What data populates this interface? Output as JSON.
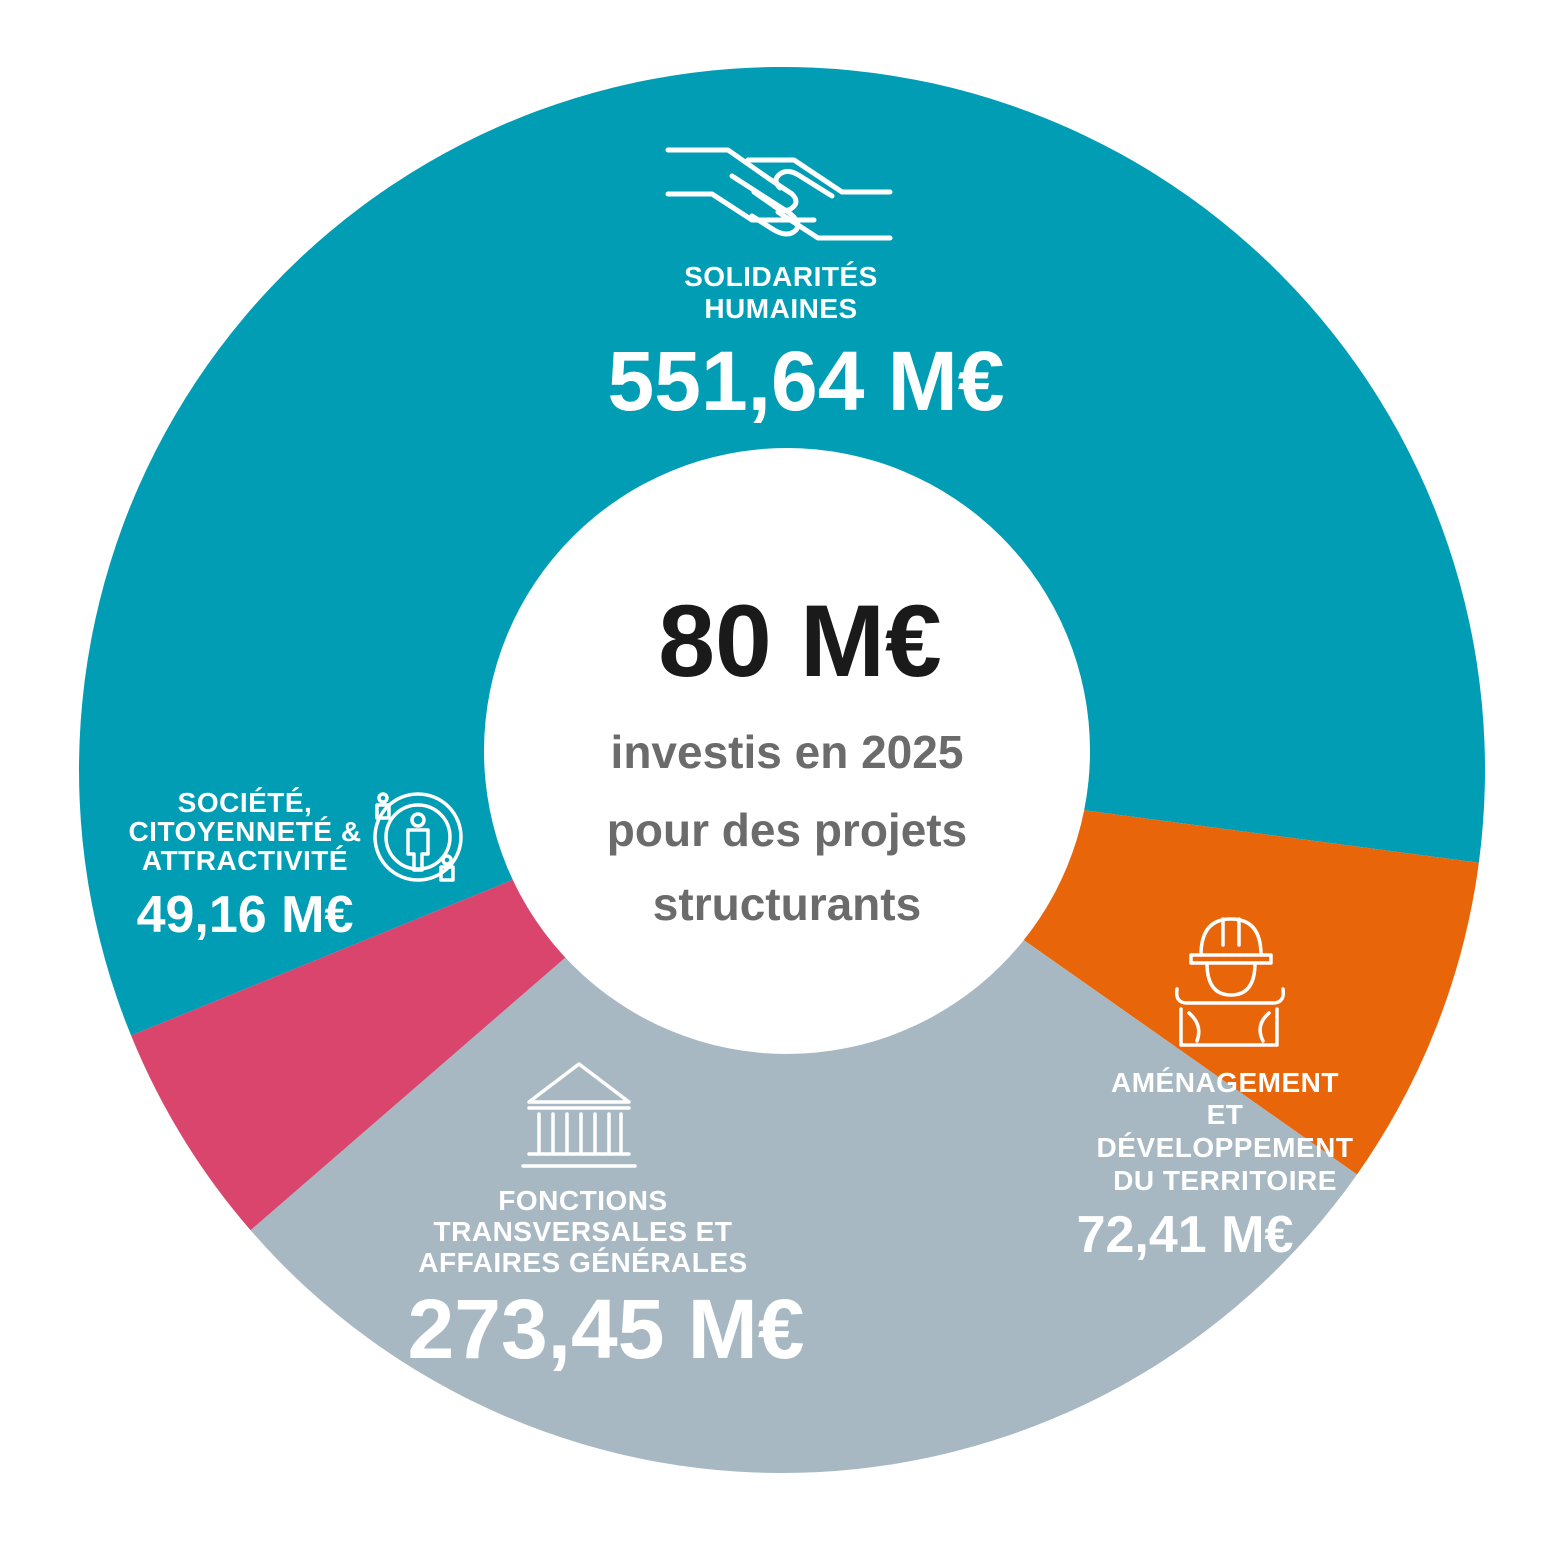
{
  "chart_data": {
    "type": "donut",
    "center": {
      "value": "80 M€",
      "lines": [
        "investis en 2025",
        "pour des projets",
        "structurants"
      ]
    },
    "segments": [
      {
        "id": "solidarites",
        "label_lines": [
          "SOLIDARITÉS",
          "HUMAINES"
        ],
        "value": 551.64,
        "value_text": "551,64 M€",
        "color": "#009db5",
        "icon": "hands-icon"
      },
      {
        "id": "amenagement",
        "label_lines": [
          "AMÉNAGEMENT",
          "ET",
          "DÉVELOPPEMENT",
          "DU TERRITOIRE"
        ],
        "value": 72.41,
        "value_text": "72,41 M€",
        "color": "#e8650a",
        "icon": "construction-worker-icon"
      },
      {
        "id": "fonctions",
        "label_lines": [
          "FONCTIONS",
          "TRANSVERSALES ET",
          "AFFAIRES GÉNÉRALES"
        ],
        "value": 273.45,
        "value_text": "273,45 M€",
        "color": "#a7b8c3",
        "icon": "public-building-icon"
      },
      {
        "id": "societe",
        "label_lines": [
          "SOCIÉTÉ,",
          "CITOYENNETÉ &",
          "ATTRACTIVITÉ"
        ],
        "value": 49.16,
        "value_text": "49,16 M€",
        "color": "#d9456c",
        "icon": "citizens-icon"
      }
    ]
  }
}
